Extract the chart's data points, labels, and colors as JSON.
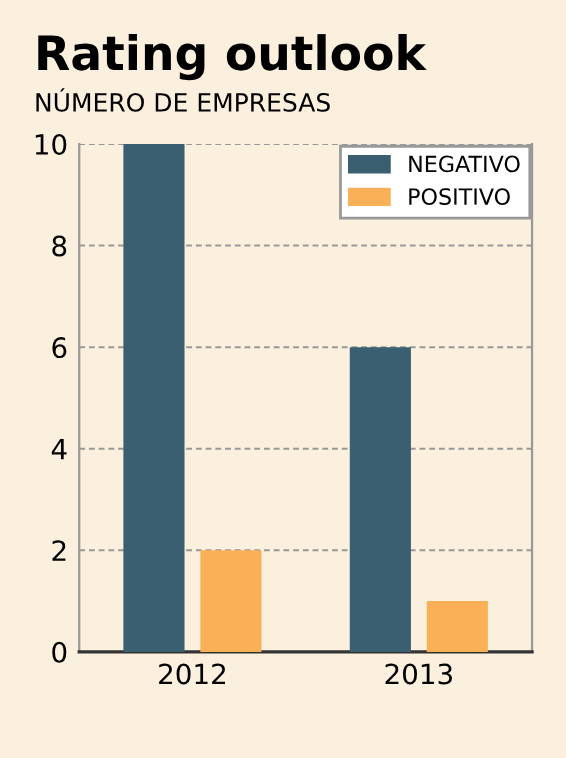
{
  "chart_data": {
    "type": "bar",
    "title": "Rating outlook",
    "subtitle": "NÚMERO DE EMPRESAS",
    "categories": [
      "2012",
      "2013"
    ],
    "series": [
      {
        "name": "NEGATIVO",
        "color": "#3a5f70",
        "values": [
          10,
          6
        ]
      },
      {
        "name": "POSITIVO",
        "color": "#f9b057",
        "values": [
          2,
          1
        ]
      }
    ],
    "ylim": [
      0,
      10
    ],
    "yticks": [
      0,
      2,
      4,
      6,
      8,
      10
    ],
    "grid": "y",
    "legend": "top right"
  }
}
